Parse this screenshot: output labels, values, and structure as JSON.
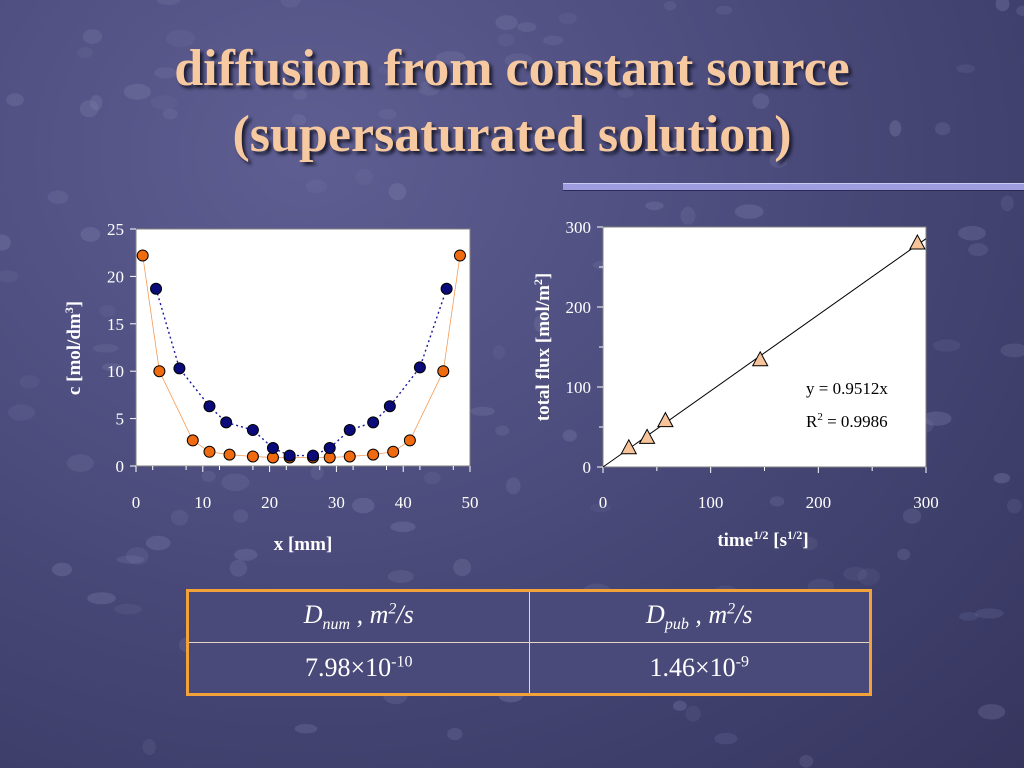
{
  "slide": {
    "title_line1": "diffusion from constant source",
    "title_line2": "(supersaturated solution)"
  },
  "colors": {
    "navy_marker": "#0a0a7a",
    "orange_marker": "#f06a10",
    "triangle_fill": "#f6c39a",
    "title": "#f6c9a0",
    "table_border": "#f3a23a"
  },
  "chart_data": [
    {
      "type": "scatter",
      "ylabel": "c [mol/dm3]",
      "xlabel": "x [mm]",
      "xlim": [
        0,
        50
      ],
      "ylim": [
        0,
        25
      ],
      "xticks": [
        "0",
        "10",
        "20",
        "30",
        "40",
        "50"
      ],
      "yticks": [
        "0",
        "5",
        "10",
        "15",
        "20",
        "25"
      ],
      "grid": false,
      "series": [
        {
          "color": "navy",
          "line": "dotted",
          "x": [
            3,
            6.5,
            11,
            13.5,
            17.5,
            20.5,
            23,
            26.5,
            29,
            32,
            35.5,
            38,
            42.5,
            46.5
          ],
          "y": [
            18.7,
            10.3,
            6.3,
            4.6,
            3.8,
            1.9,
            1.1,
            1.1,
            1.9,
            3.8,
            4.6,
            6.3,
            10.4,
            18.7
          ]
        },
        {
          "color": "orange",
          "line": "solid thin",
          "x": [
            1,
            3.5,
            8.5,
            11,
            14,
            17.5,
            20.5,
            23,
            26.5,
            29,
            32,
            35.5,
            38.5,
            41,
            46,
            48.5
          ],
          "y": [
            22.2,
            10,
            2.7,
            1.5,
            1.2,
            1,
            0.9,
            0.9,
            0.9,
            0.9,
            1,
            1.2,
            1.5,
            2.7,
            10,
            22.2
          ]
        }
      ]
    },
    {
      "type": "scatter",
      "ylabel": "total flux [mol/m2]",
      "xlabel": "time1/2 [s1/2]",
      "xlim": [
        0,
        300
      ],
      "ylim": [
        0,
        300
      ],
      "xticks": [
        "0",
        "100",
        "200",
        "300"
      ],
      "yticks": [
        "0",
        "100",
        "200",
        "300"
      ],
      "grid": false,
      "series": [
        {
          "marker": "triangle",
          "x": [
            24,
            41,
            58,
            146,
            292
          ],
          "y": [
            24,
            37,
            58,
            134,
            280
          ]
        }
      ],
      "trendline": {
        "slope": 0.9512,
        "intercept": 0
      },
      "annotations": [
        "y = 0.9512x",
        "R2 = 0.9986"
      ]
    }
  ],
  "chart_text": {
    "left": {
      "y_label": "c [mol/dm",
      "y_label_sup": "3",
      "y_label_end": "]",
      "x_label": "x [mm]"
    },
    "right": {
      "y_label": "total flux [mol/m",
      "y_label_sup": "2",
      "y_label_end": "]",
      "x_label_a": "time",
      "x_label_a_sup": "1/2",
      "x_label_b": " [s",
      "x_label_b_sup": "1/2",
      "x_label_c": "]",
      "eq_line": "y = 0.9512x",
      "r2_a": "R",
      "r2_sup": "2",
      "r2_b": " = 0.9986"
    }
  },
  "table": {
    "h1_sym": "D",
    "h1_sub": "num",
    "h1_unit": " , m",
    "h1_sup": "2",
    "h1_tail": "/s",
    "h2_sym": "D",
    "h2_sub": "pub",
    "h2_unit": " , m",
    "h2_sup": "2",
    "h2_tail": "/s",
    "v1_base": "7.98×10",
    "v1_exp": "-10",
    "v2_base": "1.46×10",
    "v2_exp": "-9"
  }
}
